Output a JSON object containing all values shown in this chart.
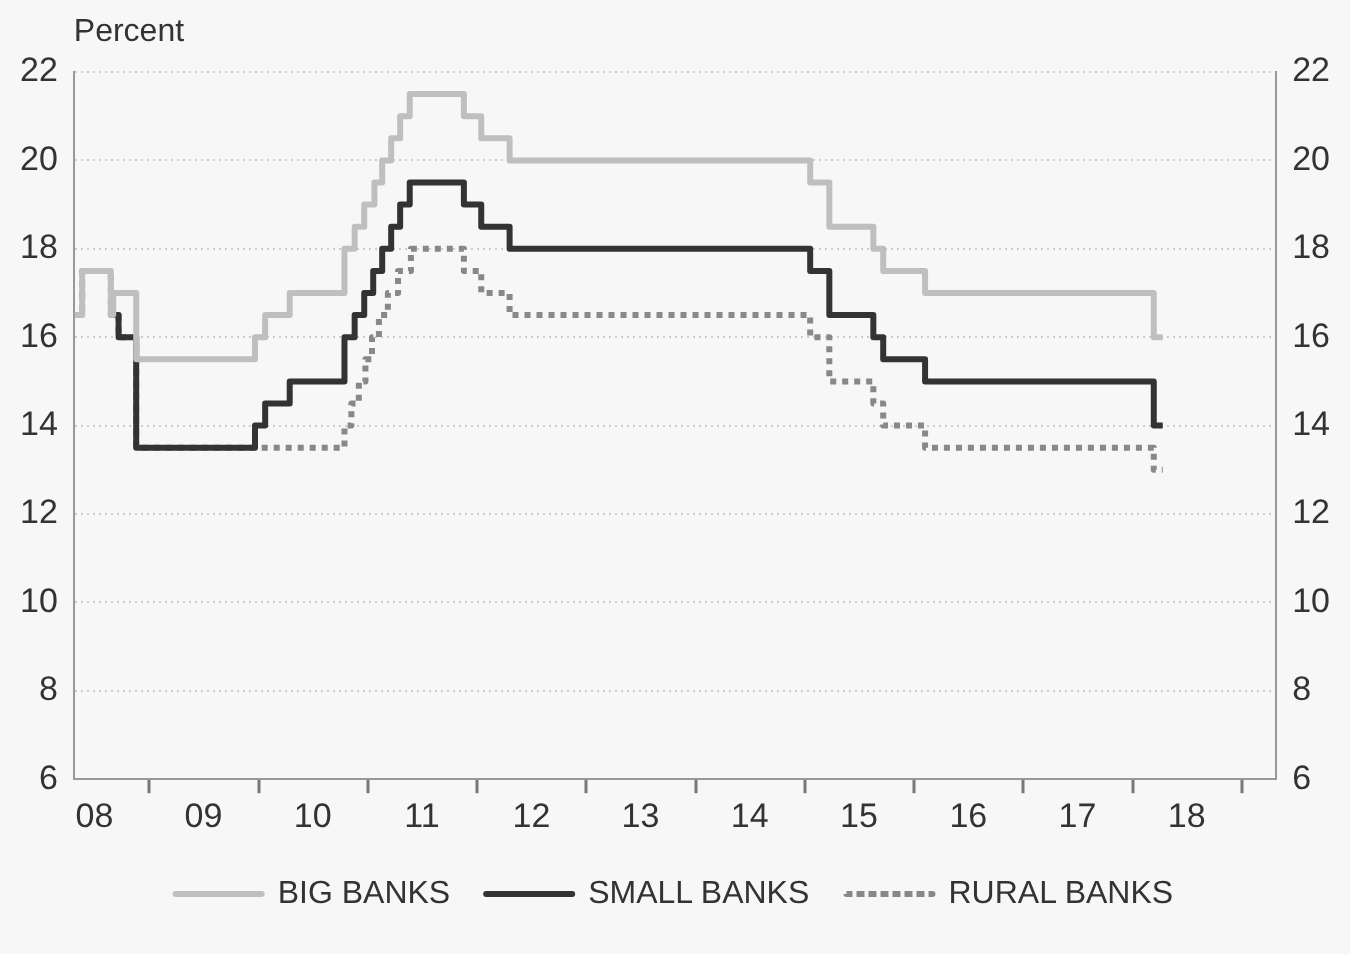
{
  "chart_data": {
    "type": "step",
    "ylabel": "Percent",
    "series": [
      {
        "name": "BIG BANKS",
        "color": "#bfbfbf",
        "line_style": "solid",
        "x": [
          "2008-04-26",
          "2008-05-21",
          "2008-08-25",
          "2008-09-02",
          "2008-11-18",
          "2009-12-20",
          "2010-01-23",
          "2010-04-15",
          "2010-10-15",
          "2010-11-18",
          "2010-12-20",
          "2011-01-23",
          "2011-02-18",
          "2011-03-20",
          "2011-04-19",
          "2011-05-21",
          "2011-11-18",
          "2012-01-15",
          "2012-04-19",
          "2015-01-19",
          "2015-03-24",
          "2015-08-18",
          "2015-09-20",
          "2016-02-07",
          "2018-03-13",
          "2018-04-12"
        ],
        "values": [
          16.5,
          17.5,
          16.5,
          17,
          15.5,
          16,
          16.5,
          17,
          18,
          18.5,
          19,
          19.5,
          20,
          20.5,
          21,
          21.5,
          21,
          20.5,
          20,
          19.5,
          18.5,
          18,
          17.5,
          17,
          16,
          16
        ]
      },
      {
        "name": "SMALL BANKS",
        "color": "#333333",
        "line_style": "solid",
        "x": [
          "2008-08-25",
          "2008-09-20",
          "2008-11-18",
          "2009-12-20",
          "2010-01-23",
          "2010-04-15",
          "2010-10-15",
          "2010-11-18",
          "2010-12-20",
          "2011-01-19",
          "2011-02-18",
          "2011-03-20",
          "2011-04-19",
          "2011-05-21",
          "2011-11-18",
          "2012-01-15",
          "2012-04-19",
          "2015-01-19",
          "2015-03-24",
          "2015-08-18",
          "2015-09-20",
          "2016-02-07",
          "2018-03-13",
          "2018-04-12"
        ],
        "values": [
          16.5,
          16,
          13.5,
          14,
          14.5,
          15,
          16,
          16.5,
          17,
          17.5,
          18,
          18.5,
          19,
          19.5,
          19,
          18.5,
          18,
          17.5,
          16.5,
          16,
          15.5,
          15,
          14,
          14
        ]
      },
      {
        "name": "RURAL BANKS",
        "color": "#888888",
        "line_style": "dotted",
        "x": [
          "2008-04-26",
          "2008-05-21",
          "2008-08-25",
          "2008-09-20",
          "2008-11-18",
          "2010-10-15",
          "2010-11-07",
          "2010-12-02",
          "2010-12-24",
          "2011-01-15",
          "2011-02-07",
          "2011-03-09",
          "2011-04-12",
          "2011-05-25",
          "2011-11-18",
          "2012-01-15",
          "2012-04-19",
          "2015-01-19",
          "2015-03-24",
          "2015-08-18",
          "2015-09-20",
          "2016-02-07",
          "2018-03-13",
          "2018-04-12"
        ],
        "values": [
          16.5,
          17.5,
          16.5,
          16,
          13.5,
          14,
          14.5,
          15,
          15.5,
          16,
          16.5,
          17,
          17.5,
          18,
          17.5,
          17,
          16.5,
          16,
          15,
          14.5,
          14,
          13.5,
          13,
          13
        ]
      }
    ],
    "xlim": [
      "2008-04-23",
      "2019-04-26"
    ],
    "xticks": [
      {
        "value": "2008-07-01",
        "label": "08"
      },
      {
        "value": "2009-01-01",
        "label": null
      },
      {
        "value": "2009-07-01",
        "label": "09"
      },
      {
        "value": "2010-01-01",
        "label": null
      },
      {
        "value": "2010-07-01",
        "label": "10"
      },
      {
        "value": "2011-01-01",
        "label": null
      },
      {
        "value": "2011-07-01",
        "label": "11"
      },
      {
        "value": "2012-01-01",
        "label": null
      },
      {
        "value": "2012-07-01",
        "label": "12"
      },
      {
        "value": "2013-01-01",
        "label": null
      },
      {
        "value": "2013-07-01",
        "label": "13"
      },
      {
        "value": "2014-01-01",
        "label": null
      },
      {
        "value": "2014-07-01",
        "label": "14"
      },
      {
        "value": "2015-01-01",
        "label": null
      },
      {
        "value": "2015-07-01",
        "label": "15"
      },
      {
        "value": "2016-01-01",
        "label": null
      },
      {
        "value": "2016-07-01",
        "label": "16"
      },
      {
        "value": "2017-01-01",
        "label": null
      },
      {
        "value": "2017-07-01",
        "label": "17"
      },
      {
        "value": "2018-01-01",
        "label": null
      },
      {
        "value": "2018-07-01",
        "label": "18"
      },
      {
        "value": "2019-01-01",
        "label": null
      }
    ],
    "ylim": [
      6,
      22
    ],
    "yticks": [
      6,
      8,
      10,
      12,
      14,
      16,
      18,
      20,
      22
    ],
    "y2lim": [
      6,
      22
    ],
    "y2ticks": [
      6,
      8,
      10,
      12,
      14,
      16,
      18,
      20,
      22
    ],
    "grid": "y",
    "legend": "bottom"
  }
}
